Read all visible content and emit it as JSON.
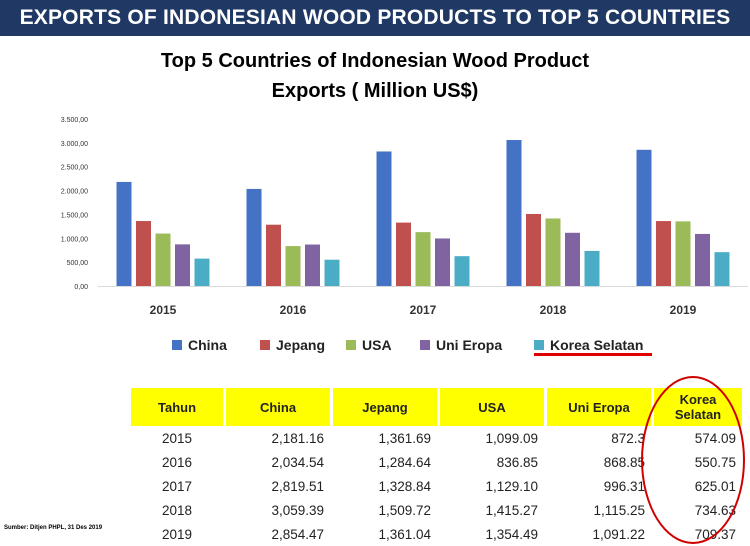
{
  "banner": {
    "title": "EXPORTS OF INDONESIAN WOOD PRODUCTS TO TOP 5 COUNTRIES"
  },
  "chart_data": {
    "type": "bar",
    "title_line1": "Top 5 Countries of  Indonesian Wood  Product",
    "title_line2": "Exports ( Million US$)",
    "categories": [
      "2015",
      "2016",
      "2017",
      "2018",
      "2019"
    ],
    "series": [
      {
        "name": "China",
        "color": "#4472c4",
        "values": [
          2181.16,
          2034.54,
          2819.51,
          3059.39,
          2854.47
        ]
      },
      {
        "name": "Jepang",
        "color": "#c0504d",
        "values": [
          1361.69,
          1284.64,
          1328.84,
          1509.72,
          1361.04
        ]
      },
      {
        "name": "USA",
        "color": "#9bbb59",
        "values": [
          1099.09,
          836.85,
          1129.1,
          1415.27,
          1354.49
        ]
      },
      {
        "name": "Uni Eropa",
        "color": "#8064a2",
        "values": [
          872.3,
          868.85,
          996.31,
          1115.25,
          1091.22
        ]
      },
      {
        "name": "Korea Selatan",
        "color": "#4bacc6",
        "values": [
          574.09,
          550.75,
          625.01,
          734.63,
          709.37
        ]
      }
    ],
    "ylim": [
      0,
      3500
    ],
    "yticks": [
      "0,00",
      "500,00",
      "1.000,00",
      "1.500,00",
      "2.000,00",
      "2.500,00",
      "3.000,00",
      "3.500,00"
    ],
    "legend_position": "bottom"
  },
  "table": {
    "headers": [
      "Tahun",
      "China",
      "Jepang",
      "USA",
      "Uni Eropa",
      "Korea Selatan"
    ],
    "rows": [
      [
        "2015",
        "2,181.16",
        "1,361.69",
        "1,099.09",
        "872.3",
        "574.09"
      ],
      [
        "2016",
        "2,034.54",
        "1,284.64",
        "836.85",
        "868.85",
        "550.75"
      ],
      [
        "2017",
        "2,819.51",
        "1,328.84",
        "1,129.10",
        "996.31",
        "625.01"
      ],
      [
        "2018",
        "3,059.39",
        "1,509.72",
        "1,415.27",
        "1,115.25",
        "734.63"
      ],
      [
        "2019",
        "2,854.47",
        "1,361.04",
        "1,354.49",
        "1,091.22",
        "709.37"
      ]
    ]
  },
  "source": "Sumber: Ditjen PHPL, 31 Des 2019",
  "highlight_color": "#e00000"
}
